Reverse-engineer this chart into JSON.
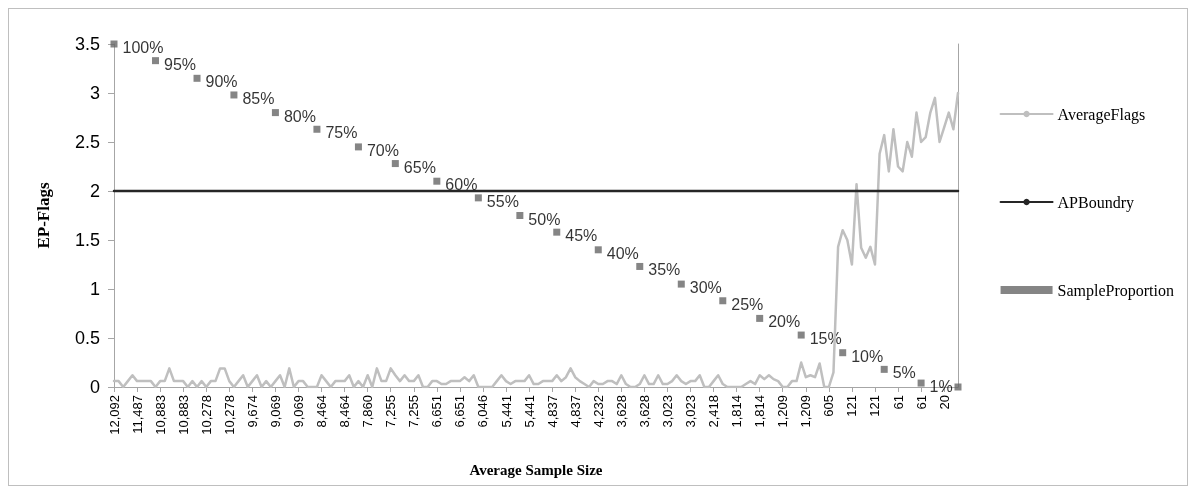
{
  "chart_data": {
    "type": "line",
    "xlabel": "Average Sample Size",
    "ylabel": "EP-Flags",
    "ylim": [
      0,
      3.5
    ],
    "yticks": [
      0,
      0.5,
      1,
      1.5,
      2,
      2.5,
      3,
      3.5
    ],
    "grid": false,
    "legend": "right",
    "categories": [
      "12,092",
      null,
      null,
      null,
      null,
      "11,487",
      null,
      null,
      null,
      null,
      "10,883",
      null,
      null,
      null,
      null,
      "10,883",
      null,
      null,
      null,
      null,
      "10,278",
      null,
      null,
      null,
      null,
      "10,278",
      null,
      null,
      null,
      null,
      "9,674",
      null,
      null,
      null,
      null,
      "9,069",
      null,
      null,
      null,
      null,
      "9,069",
      null,
      null,
      null,
      null,
      "8,464",
      null,
      null,
      null,
      null,
      "8,464",
      null,
      null,
      null,
      null,
      "7,860",
      null,
      null,
      null,
      null,
      "7,255",
      null,
      null,
      null,
      null,
      "7,255",
      null,
      null,
      null,
      null,
      "6,651",
      null,
      null,
      null,
      null,
      "6,651",
      null,
      null,
      null,
      null,
      "6,046",
      null,
      null,
      null,
      null,
      "5,441",
      null,
      null,
      null,
      null,
      "5,441",
      null,
      null,
      null,
      null,
      "4,837",
      null,
      null,
      null,
      null,
      "4,837",
      null,
      null,
      null,
      null,
      "4,232",
      null,
      null,
      null,
      null,
      "3,628",
      null,
      null,
      null,
      null,
      "3,628",
      null,
      null,
      null,
      null,
      "3,023",
      null,
      null,
      null,
      null,
      "3,023",
      null,
      null,
      null,
      null,
      "2,418",
      null,
      null,
      null,
      null,
      "1,814",
      null,
      null,
      null,
      null,
      "1,814",
      null,
      null,
      null,
      null,
      "1,209",
      null,
      null,
      null,
      null,
      "1,209",
      null,
      null,
      null,
      null,
      "605",
      null,
      null,
      null,
      null,
      "121",
      null,
      null,
      null,
      null,
      "121",
      null,
      null,
      null,
      null,
      "61",
      null,
      null,
      null,
      null,
      "61",
      null,
      null,
      null,
      null,
      "20",
      null,
      null,
      null
    ],
    "series": [
      {
        "name": "AverageFlags",
        "color": "#bfbfbf",
        "values": [
          0.06,
          0.06,
          0,
          0.06,
          0.12,
          0.06,
          0.06,
          0.06,
          0.06,
          0,
          0.06,
          0.06,
          0.19,
          0.06,
          0.06,
          0.06,
          0,
          0.06,
          0,
          0.06,
          0,
          0.06,
          0.06,
          0.19,
          0.19,
          0.06,
          0,
          0.06,
          0.12,
          0,
          0.06,
          0.12,
          0,
          0.06,
          0,
          0.06,
          0.12,
          0,
          0.19,
          0,
          0.06,
          0.06,
          0,
          0,
          0,
          0.12,
          0.06,
          0,
          0.06,
          0.06,
          0.06,
          0.12,
          0,
          0.06,
          0,
          0.12,
          0,
          0.19,
          0.06,
          0.06,
          0.19,
          0.12,
          0.06,
          0.12,
          0.06,
          0.06,
          0.12,
          0,
          0,
          0.06,
          0.06,
          0.03,
          0.03,
          0.06,
          0.06,
          0.06,
          0.1,
          0.06,
          0.12,
          0,
          0,
          0,
          0,
          0.06,
          0.12,
          0.06,
          0.03,
          0.06,
          0.06,
          0.06,
          0.12,
          0.03,
          0.03,
          0.06,
          0.06,
          0.06,
          0.12,
          0.06,
          0.1,
          0.19,
          0.1,
          0.06,
          0.03,
          0,
          0.06,
          0.03,
          0.03,
          0.06,
          0.06,
          0.03,
          0.12,
          0.03,
          0,
          0,
          0.03,
          0.12,
          0.03,
          0.03,
          0.12,
          0.03,
          0.03,
          0.06,
          0.12,
          0.06,
          0.03,
          0.06,
          0.06,
          0.12,
          0,
          0,
          0.06,
          0.12,
          0.03,
          0,
          0,
          0,
          0,
          0.03,
          0.06,
          0.03,
          0.12,
          0.08,
          0.12,
          0.08,
          0.06,
          0,
          0,
          0.06,
          0.06,
          0.25,
          0.1,
          0.12,
          0.1,
          0.24,
          0,
          0,
          0.15,
          1.43,
          1.6,
          1.5,
          1.25,
          2.07,
          1.42,
          1.32,
          1.43,
          1.25,
          2.38,
          2.57,
          2.2,
          2.63,
          2.25,
          2.2,
          2.5,
          2.35,
          2.8,
          2.5,
          2.55,
          2.8,
          2.95,
          2.5,
          2.65,
          2.8,
          2.63,
          3
        ]
      },
      {
        "name": "APBoundry",
        "type": "line",
        "color": "#262626",
        "values": [
          2,
          2,
          2,
          2,
          2,
          2,
          2,
          2,
          2,
          2,
          2,
          2,
          2,
          2,
          2,
          2,
          2,
          2,
          2,
          2,
          2,
          2,
          2,
          2,
          2,
          2,
          2,
          2,
          2,
          2,
          2,
          2,
          2,
          2,
          2,
          2,
          2,
          2,
          2,
          2,
          2,
          2,
          2,
          2,
          2,
          2,
          2,
          2,
          2,
          2,
          2,
          2,
          2,
          2,
          2,
          2,
          2,
          2,
          2,
          2,
          2,
          2,
          2,
          2,
          2,
          2,
          2,
          2,
          2,
          2,
          2,
          2,
          2,
          2,
          2,
          2,
          2,
          2,
          2,
          2,
          2,
          2,
          2,
          2,
          2,
          2,
          2,
          2,
          2,
          2,
          2,
          2,
          2,
          2,
          2,
          2,
          2,
          2,
          2,
          2,
          2,
          2,
          2,
          2,
          2,
          2,
          2,
          2,
          2,
          2,
          2,
          2,
          2,
          2,
          2,
          2,
          2,
          2,
          2,
          2,
          2,
          2,
          2,
          2,
          2,
          2,
          2,
          2,
          2,
          2,
          2,
          2,
          2,
          2,
          2,
          2,
          2,
          2,
          2,
          2,
          2,
          2,
          2,
          2,
          2,
          2,
          2,
          2,
          2,
          2,
          2,
          2,
          2,
          2,
          2,
          2,
          2,
          2,
          2,
          2,
          2,
          2,
          2,
          2,
          2,
          2,
          2,
          2,
          2,
          2,
          2,
          2,
          2,
          2,
          2,
          2,
          2,
          2,
          2,
          2,
          2,
          2,
          2,
          2
        ]
      },
      {
        "name": "SampleProportion",
        "type": "scatter",
        "marker": "square",
        "color": "#666666",
        "values": [
          3.5,
          null,
          null,
          null,
          null,
          null,
          null,
          null,
          null,
          3.33,
          null,
          null,
          null,
          null,
          null,
          null,
          null,
          null,
          3.15,
          null,
          null,
          null,
          null,
          null,
          null,
          null,
          2.98,
          null,
          null,
          null,
          null,
          null,
          null,
          null,
          null,
          2.8,
          null,
          null,
          null,
          null,
          null,
          null,
          null,
          null,
          2.63,
          null,
          null,
          null,
          null,
          null,
          null,
          null,
          null,
          2.45,
          null,
          null,
          null,
          null,
          null,
          null,
          null,
          2.28,
          null,
          null,
          null,
          null,
          null,
          null,
          null,
          null,
          2.1,
          null,
          null,
          null,
          null,
          null,
          null,
          null,
          null,
          1.93,
          null,
          null,
          null,
          null,
          null,
          null,
          null,
          null,
          1.75,
          null,
          null,
          null,
          null,
          null,
          null,
          null,
          1.58,
          null,
          null,
          null,
          null,
          null,
          null,
          null,
          null,
          1.4,
          null,
          null,
          null,
          null,
          null,
          null,
          null,
          null,
          1.23,
          null,
          null,
          null,
          null,
          null,
          null,
          null,
          null,
          1.05,
          null,
          null,
          null,
          null,
          null,
          null,
          null,
          null,
          0.88,
          null,
          null,
          null,
          null,
          null,
          null,
          null,
          0.7,
          null,
          null,
          null,
          null,
          null,
          null,
          null,
          null,
          0.53,
          null,
          null,
          null,
          null,
          null,
          null,
          null,
          null,
          0.35,
          null,
          null,
          null,
          null,
          null,
          null,
          null,
          null,
          0.18,
          null,
          null,
          null,
          null,
          null,
          null,
          null,
          0.04,
          null,
          null,
          null,
          null,
          null,
          null,
          null,
          0
        ]
      }
    ],
    "annotations": [
      "100%",
      "95%",
      "90%",
      "85%",
      "80%",
      "75%",
      "70%",
      "65%",
      "60%",
      "55%",
      "50%",
      "45%",
      "40%",
      "35%",
      "30%",
      "25%",
      "20%",
      "15%",
      "10%",
      "5%",
      "1%"
    ]
  }
}
